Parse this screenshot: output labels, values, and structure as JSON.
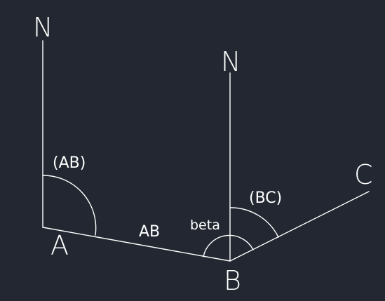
{
  "diagram": {
    "background_color": "#222731",
    "line_color": "#ffffff",
    "north_label_a": "N",
    "north_label_b": "N",
    "point_a": "A",
    "point_b": "B",
    "point_c": "C",
    "segment_ab": "AB",
    "azimuth_ab": "(AB)",
    "azimuth_bc": "(BC)",
    "angle_beta": "beta"
  }
}
